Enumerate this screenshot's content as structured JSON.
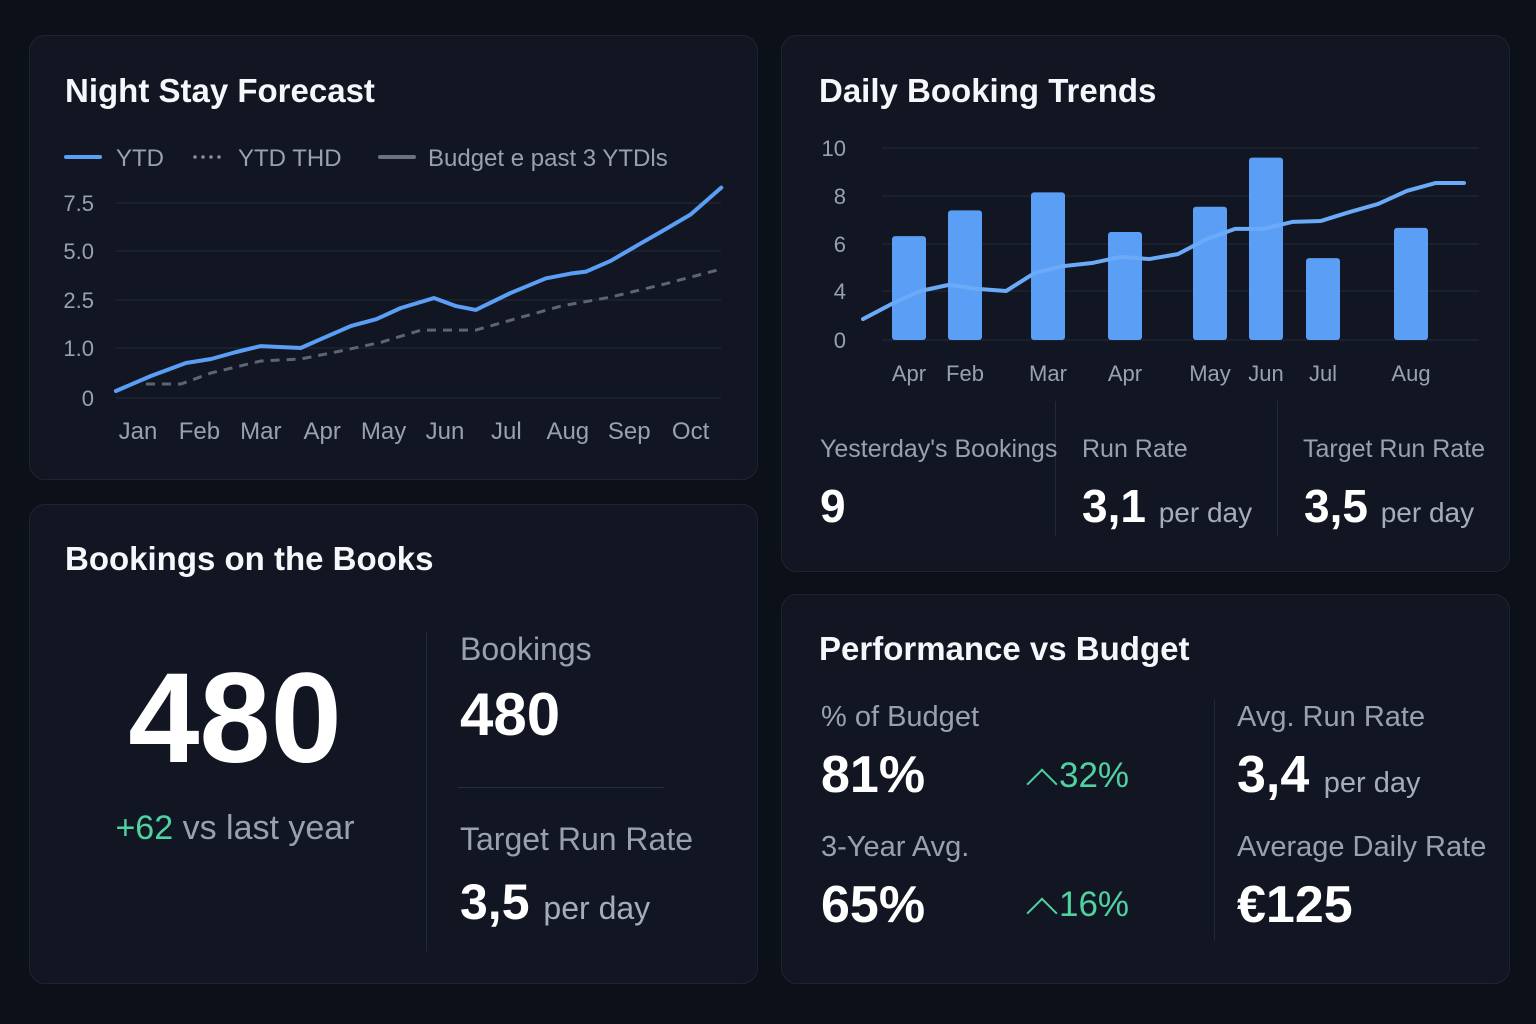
{
  "colors": {
    "background": "#0c1019",
    "card": "#111622",
    "accent_blue": "#5b9ef5",
    "budget_gray": "#6b7280",
    "positive_green": "#4fd1a0"
  },
  "night_stay": {
    "title": "Night Stay Forecast"
  },
  "daily_trends": {
    "title": "Daily Booking Trends",
    "stats": [
      {
        "label": "Yesterday's Bookings",
        "value": "9",
        "unit": ""
      },
      {
        "label": "Run Rate",
        "value": "3,1",
        "unit": "per day"
      },
      {
        "label": "Target Run Rate",
        "value": "3,5",
        "unit": "per day"
      }
    ]
  },
  "books": {
    "title": "Bookings on the Books",
    "big_value": "480",
    "delta": "+62",
    "delta_suffix": "vs last year",
    "bookings_label": "Bookings",
    "bookings_value": "480",
    "target_label": "Target Run Rate",
    "target_value": "3,5",
    "target_unit": "per day"
  },
  "performance": {
    "title": "Performance vs Budget",
    "pct_budget_label": "% of Budget",
    "pct_budget_value": "81%",
    "pct_budget_change": "32%",
    "three_year_label": "3-Year Avg.",
    "three_year_value": "65%",
    "three_year_change": "16%",
    "avg_run_label": "Avg. Run Rate",
    "avg_run_value": "3,4",
    "avg_run_unit": "per day",
    "adr_label": "Average Daily Rate",
    "adr_value": "€125",
    "change_icon": "chevron-up-icon"
  },
  "chart_data": [
    {
      "type": "line",
      "title": "Night Stay Forecast",
      "categories": [
        "Jan",
        "Feb",
        "Mar",
        "Apr",
        "May",
        "Jun",
        "Jul",
        "Aug",
        "Sep",
        "Oct"
      ],
      "yticks": [
        "7.5",
        "5.0",
        "2.5",
        "1.0",
        "0"
      ],
      "ytick_values": [
        7.5,
        5.0,
        2.5,
        1.0,
        0
      ],
      "legend": [
        "YTD",
        "YTD THD",
        "Budget e past 3 YTDls"
      ],
      "legend_placement": "top-left",
      "grid": true,
      "series": [
        {
          "name": "YTD",
          "style": "solid",
          "color": "#5b9ef5",
          "points": [
            [
              0.64,
              0.14
            ],
            [
              1.21,
              0.44
            ],
            [
              1.78,
              0.7
            ],
            [
              2.19,
              0.78
            ],
            [
              2.6,
              0.92
            ],
            [
              3.0,
              1.06
            ],
            [
              3.65,
              1.0
            ],
            [
              3.98,
              1.28
            ],
            [
              4.47,
              1.69
            ],
            [
              4.88,
              1.9
            ],
            [
              5.28,
              2.25
            ],
            [
              5.82,
              2.6
            ],
            [
              6.18,
              2.31
            ],
            [
              6.5,
              2.19
            ],
            [
              7.07,
              2.86
            ],
            [
              7.64,
              3.6
            ],
            [
              8.05,
              3.85
            ],
            [
              8.3,
              3.95
            ],
            [
              8.7,
              4.5
            ],
            [
              9.19,
              5.4
            ],
            [
              9.52,
              6.0
            ],
            [
              10.0,
              6.9
            ],
            [
              10.5,
              8.3
            ]
          ]
        },
        {
          "name": "YTD THD",
          "style": "dashed",
          "color": "#6b7280",
          "points": [
            [
              1.13,
              0.28
            ],
            [
              1.7,
              0.28
            ],
            [
              2.19,
              0.5
            ],
            [
              3.0,
              0.74
            ],
            [
              3.65,
              0.78
            ],
            [
              4.3,
              0.94
            ],
            [
              4.96,
              1.18
            ],
            [
              5.61,
              1.56
            ],
            [
              6.5,
              1.56
            ],
            [
              7.07,
              1.87
            ],
            [
              7.89,
              2.31
            ],
            [
              8.7,
              2.65
            ],
            [
              9.52,
              3.27
            ],
            [
              10.5,
              4.08
            ]
          ]
        }
      ]
    },
    {
      "type": "bar",
      "title": "Daily Booking Trends",
      "categories": [
        "Apr",
        "Feb",
        "Mar",
        "Apr",
        "May",
        "Jun",
        "Jul",
        "Aug"
      ],
      "values": [
        6.33,
        7.4,
        8.15,
        6.5,
        7.55,
        9.6,
        5.4,
        6.67
      ],
      "yticks": [
        "10",
        "8",
        "6",
        "4",
        "0"
      ],
      "ytick_values": [
        10,
        8,
        6,
        4,
        0
      ],
      "grid": true,
      "trend_line": [
        1.71,
        2.94,
        4.0,
        4.26,
        4.09,
        4.0,
        4.77,
        5.06,
        5.19,
        5.45,
        5.36,
        5.57,
        6.2,
        6.63,
        6.63,
        6.92,
        6.96,
        7.33,
        7.67,
        8.21,
        8.54,
        8.54
      ]
    }
  ]
}
